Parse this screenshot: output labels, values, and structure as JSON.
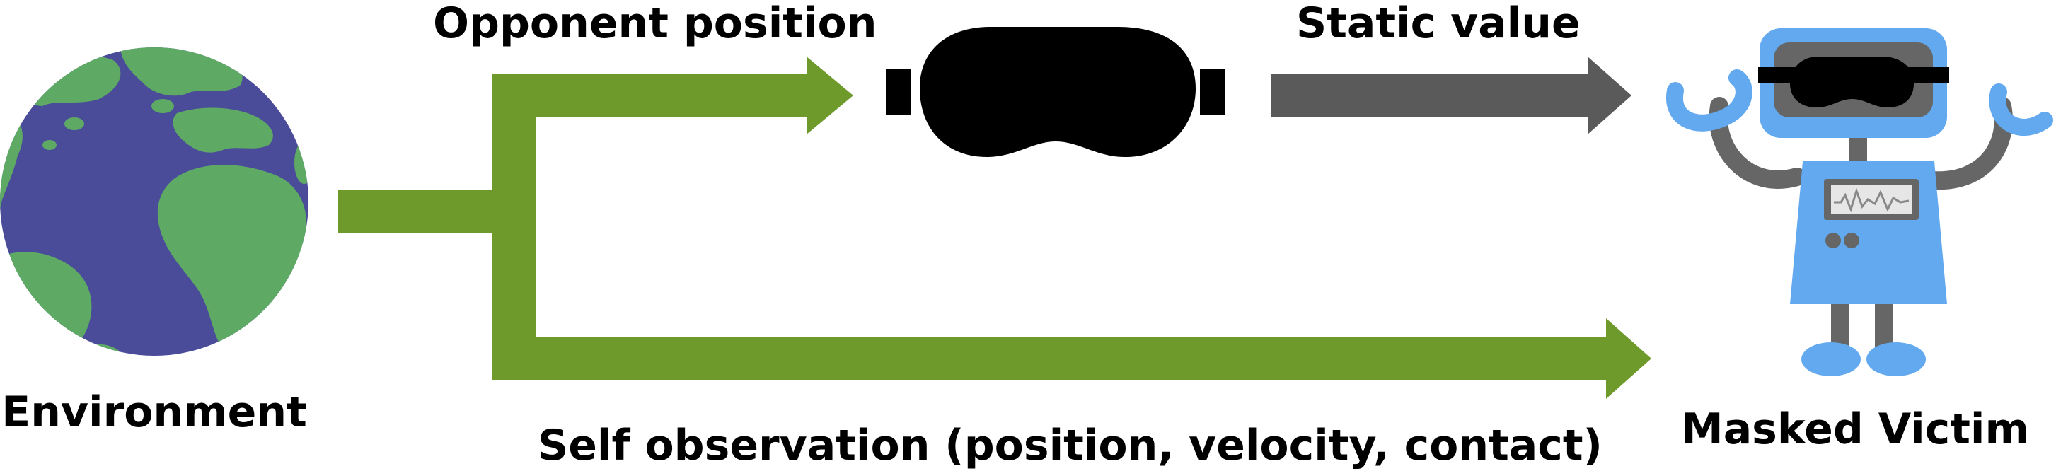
{
  "labels": {
    "environment": "Environment",
    "opponent_position": "Opponent position",
    "static_value": "Static value",
    "self_observation": "Self observation (position, velocity, contact)",
    "masked_victim": "Masked Victim"
  },
  "colors": {
    "flow_green": "#6e992b",
    "static_gray": "#5a5a5a",
    "ocean": "#4a4c9a",
    "land": "#5ea964",
    "mask": "#000000",
    "robot_body": "#62a9ef",
    "robot_limb": "#666666"
  },
  "icons": {
    "environment": "earth-globe-icon",
    "mask": "blindfold-mask-icon",
    "victim": "robot-icon"
  }
}
